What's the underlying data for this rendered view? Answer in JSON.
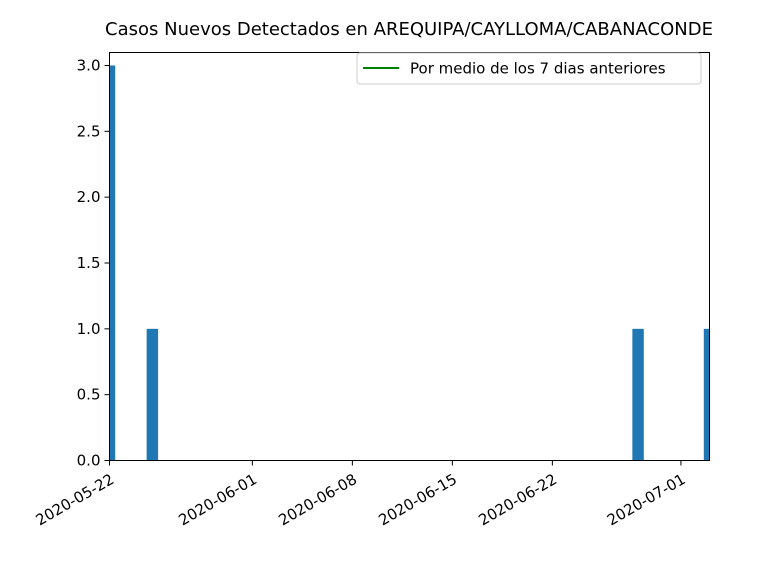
{
  "chart_data": {
    "type": "bar",
    "title": "Casos Nuevos Detectados en AREQUIPA/CAYLLOMA/CABANACONDE",
    "xlabel": "",
    "ylabel": "",
    "x_start": "2020-05-22",
    "x_end": "2020-07-03",
    "ylim": [
      0,
      3.0
    ],
    "y_ticks": [
      0.0,
      0.5,
      1.0,
      1.5,
      2.0,
      2.5,
      3.0
    ],
    "y_tick_labels": [
      "0.0",
      "0.5",
      "1.0",
      "1.5",
      "2.0",
      "2.5",
      "3.0"
    ],
    "x_ticks": [
      "2020-05-22",
      "2020-06-01",
      "2020-06-08",
      "2020-06-15",
      "2020-06-22",
      "2020-07-01"
    ],
    "bar_color": "#1f77b4",
    "series": [
      {
        "values": [
          {
            "date": "2020-05-22",
            "value": 3
          },
          {
            "date": "2020-05-25",
            "value": 1
          },
          {
            "date": "2020-06-28",
            "value": 1
          },
          {
            "date": "2020-07-03",
            "value": 1
          }
        ]
      }
    ],
    "legend": {
      "position": "top-right",
      "entries": [
        {
          "label": "Por medio de los 7 dias anteriores",
          "color": "#008000",
          "style": "line"
        }
      ]
    },
    "grid": false
  }
}
